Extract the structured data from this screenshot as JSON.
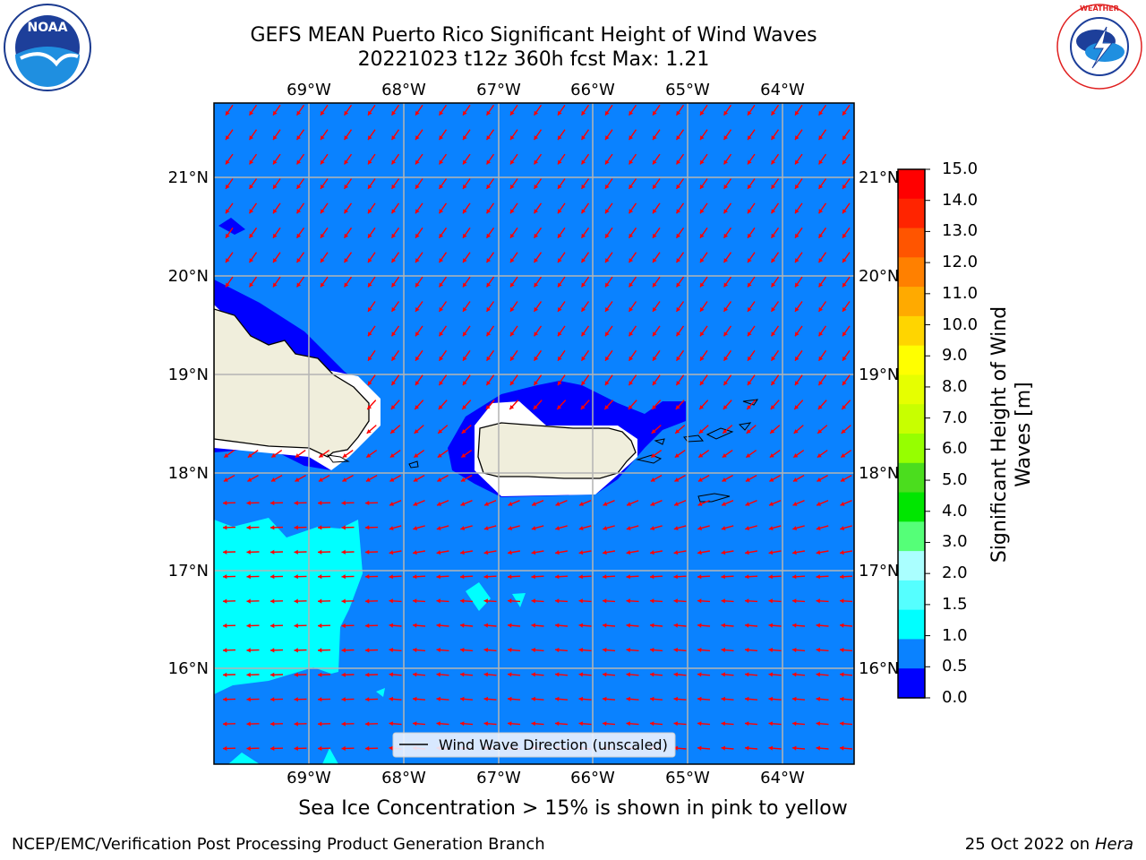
{
  "header": {
    "title_line1": "GEFS MEAN Puerto Rico Significant Height of Wind Waves",
    "title_line2": "20221023 t12z 360h fcst   Max: 1.21"
  },
  "map": {
    "lon_labels": [
      "69°W",
      "68°W",
      "67°W",
      "66°W",
      "65°W",
      "64°W"
    ],
    "lat_labels": [
      "21°N",
      "20°N",
      "19°N",
      "18°N",
      "17°N",
      "16°N"
    ],
    "legend_label": "Wind Wave Direction (unscaled)",
    "arrow_color": "#ff0000",
    "ocean_color": "#0a82ff",
    "land_color": "#f0eedc"
  },
  "colorbar": {
    "title": "Significant Height of Wind Waves [m]",
    "ticks": [
      "15.0",
      "14.0",
      "13.0",
      "12.0",
      "11.0",
      "10.0",
      "9.0",
      "8.0",
      "7.0",
      "6.0",
      "5.0",
      "4.0",
      "3.0",
      "2.0",
      "1.5",
      "1.0",
      "0.5",
      "0.0"
    ],
    "colors": [
      "#ff0000",
      "#ff2400",
      "#ff5500",
      "#ff8000",
      "#ffaa00",
      "#ffd500",
      "#ffff00",
      "#e6ff00",
      "#c8ff00",
      "#96ff00",
      "#4bdd1e",
      "#00e600",
      "#55ff78",
      "#aaffff",
      "#55ffff",
      "#00ffff",
      "#0a82ff",
      "#0000ff"
    ]
  },
  "caption": "Sea Ice Concentration > 15% is shown in pink to yellow",
  "footer": {
    "left": "NCEP/EMC/Verification Post Processing Product Generation Branch",
    "right_date": "25 Oct 2022 on ",
    "right_machine": "Hera"
  },
  "logos": {
    "left_text": "NOAA",
    "right_text": "NATIONAL WEATHER SERVICE"
  }
}
